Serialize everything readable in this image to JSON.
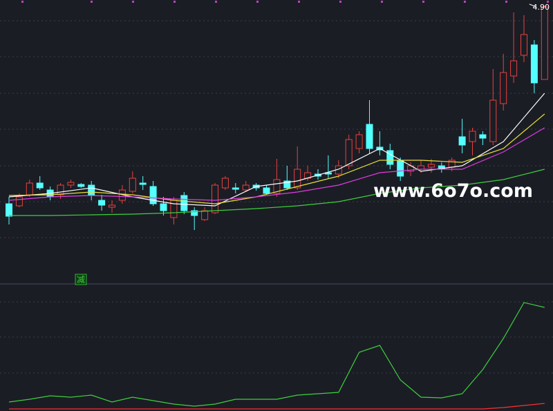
{
  "chart_data": [
    {
      "type": "candlestick",
      "open": [
        3.465,
        3.45,
        3.53,
        3.615,
        3.565,
        3.53,
        3.6,
        3.605,
        3.6,
        3.49,
        3.44,
        3.49,
        3.555,
        3.615,
        3.59,
        3.465,
        3.365,
        3.525,
        3.415,
        3.35,
        3.4,
        3.58,
        3.58,
        3.565,
        3.6,
        3.58,
        3.54,
        3.63,
        3.58,
        3.65,
        3.68,
        3.69,
        3.68,
        3.74,
        3.865,
        4.04,
        3.875,
        3.85,
        3.78,
        3.7,
        3.715,
        3.73,
        3.74,
        3.73,
        3.95,
        3.915,
        3.965,
        3.915,
        4.19,
        4.39,
        4.54,
        4.615,
        4.365
      ],
      "high": [
        3.515,
        3.54,
        3.64,
        3.665,
        3.59,
        3.615,
        3.64,
        3.615,
        3.63,
        3.53,
        3.49,
        3.6,
        3.7,
        3.665,
        3.63,
        3.515,
        3.515,
        3.55,
        3.44,
        3.44,
        3.615,
        3.665,
        3.615,
        3.63,
        3.615,
        3.6,
        3.79,
        3.74,
        3.88,
        3.74,
        3.715,
        3.815,
        3.78,
        3.965,
        3.99,
        4.215,
        3.99,
        3.9,
        3.8,
        3.765,
        3.78,
        3.79,
        3.765,
        3.8,
        4.08,
        4.015,
        3.99,
        4.44,
        4.55,
        4.85,
        4.83,
        4.65,
        4.9
      ],
      "low": [
        3.315,
        3.44,
        3.515,
        3.565,
        3.49,
        3.5,
        3.58,
        3.58,
        3.49,
        3.415,
        3.4,
        3.465,
        3.54,
        3.565,
        3.45,
        3.38,
        3.315,
        3.39,
        3.275,
        3.34,
        3.39,
        3.565,
        3.54,
        3.55,
        3.56,
        3.53,
        3.515,
        3.565,
        3.565,
        3.63,
        3.64,
        3.65,
        3.65,
        3.715,
        3.83,
        3.83,
        3.815,
        3.715,
        3.63,
        3.665,
        3.69,
        3.69,
        3.69,
        3.7,
        3.83,
        3.815,
        3.89,
        3.89,
        4.14,
        4.34,
        4.49,
        4.265,
        4.365
      ],
      "close": [
        3.375,
        3.515,
        3.615,
        3.58,
        3.515,
        3.6,
        3.62,
        3.59,
        3.53,
        3.455,
        3.455,
        3.565,
        3.65,
        3.605,
        3.465,
        3.415,
        3.49,
        3.415,
        3.38,
        3.415,
        3.6,
        3.65,
        3.57,
        3.6,
        3.58,
        3.54,
        3.64,
        3.58,
        3.715,
        3.69,
        3.665,
        3.68,
        3.74,
        3.93,
        3.965,
        3.865,
        3.855,
        3.75,
        3.665,
        3.74,
        3.74,
        3.75,
        3.715,
        3.78,
        3.89,
        3.99,
        3.94,
        4.215,
        4.415,
        4.5,
        4.69,
        4.34,
        4.89
      ],
      "up_color": "#e8413c",
      "down_color": "#54ffff",
      "max_label": "4.90",
      "ylim": [
        2.89,
        4.94
      ],
      "series": [
        {
          "color": "#ffffff",
          "x": [
            0,
            4,
            8,
            12,
            16,
            20,
            24,
            28,
            32,
            36,
            40,
            44,
            48,
            52
          ],
          "values": [
            3.515,
            3.54,
            3.58,
            3.515,
            3.465,
            3.45,
            3.59,
            3.63,
            3.715,
            3.865,
            3.7,
            3.74,
            3.915,
            4.265
          ]
        },
        {
          "color": "#e8e03a",
          "x": [
            0,
            4,
            8,
            12,
            16,
            20,
            24,
            28,
            32,
            36,
            40,
            44,
            48,
            52
          ],
          "values": [
            3.525,
            3.53,
            3.55,
            3.53,
            3.49,
            3.465,
            3.515,
            3.59,
            3.665,
            3.78,
            3.78,
            3.765,
            3.865,
            4.115
          ]
        },
        {
          "color": "#e23ce2",
          "x": [
            0,
            4,
            8,
            12,
            16,
            20,
            24,
            28,
            32,
            36,
            40,
            44,
            48,
            52
          ],
          "values": [
            3.49,
            3.515,
            3.525,
            3.515,
            3.5,
            3.49,
            3.515,
            3.55,
            3.6,
            3.69,
            3.715,
            3.715,
            3.84,
            4.015
          ]
        },
        {
          "color": "#3cd23c",
          "x": [
            0,
            4,
            8,
            12,
            16,
            20,
            24,
            28,
            32,
            36,
            40,
            44,
            48,
            52
          ],
          "values": [
            3.38,
            3.38,
            3.385,
            3.39,
            3.4,
            3.415,
            3.43,
            3.45,
            3.48,
            3.54,
            3.58,
            3.6,
            3.64,
            3.715
          ]
        }
      ]
    },
    {
      "type": "line",
      "ylim": [
        -5,
        178
      ],
      "series": [
        {
          "color": "#3cd23c",
          "x": [
            0,
            2,
            4,
            6,
            8,
            10,
            12,
            14,
            16,
            18,
            20,
            22,
            24,
            26,
            28,
            30,
            32,
            34,
            36,
            38,
            40,
            42,
            44,
            46,
            48,
            50,
            52
          ],
          "values": [
            8,
            12,
            17,
            15,
            18,
            8,
            15,
            10,
            5,
            2,
            5,
            12,
            12,
            12,
            18,
            20,
            22,
            80,
            90,
            40,
            15,
            14,
            20,
            55,
            100,
            152,
            145
          ]
        },
        {
          "color": "#ff3030",
          "x": [
            0,
            2,
            4,
            6,
            8,
            10,
            12,
            14,
            16,
            18,
            20,
            22,
            24,
            26,
            28,
            30,
            32,
            34,
            36,
            38,
            40,
            42,
            44,
            46,
            48,
            50,
            52
          ],
          "values": [
            -2,
            -2,
            -2,
            -2,
            -2,
            -2,
            -2,
            -2,
            -2,
            -2,
            -2,
            -2,
            -2,
            -2,
            -2,
            -2,
            -2,
            -2,
            -2,
            -2,
            -2,
            -2,
            -2,
            -2,
            0,
            3,
            6
          ]
        }
      ]
    }
  ],
  "signal_label": "减",
  "watermark": "www.6o7o.com"
}
